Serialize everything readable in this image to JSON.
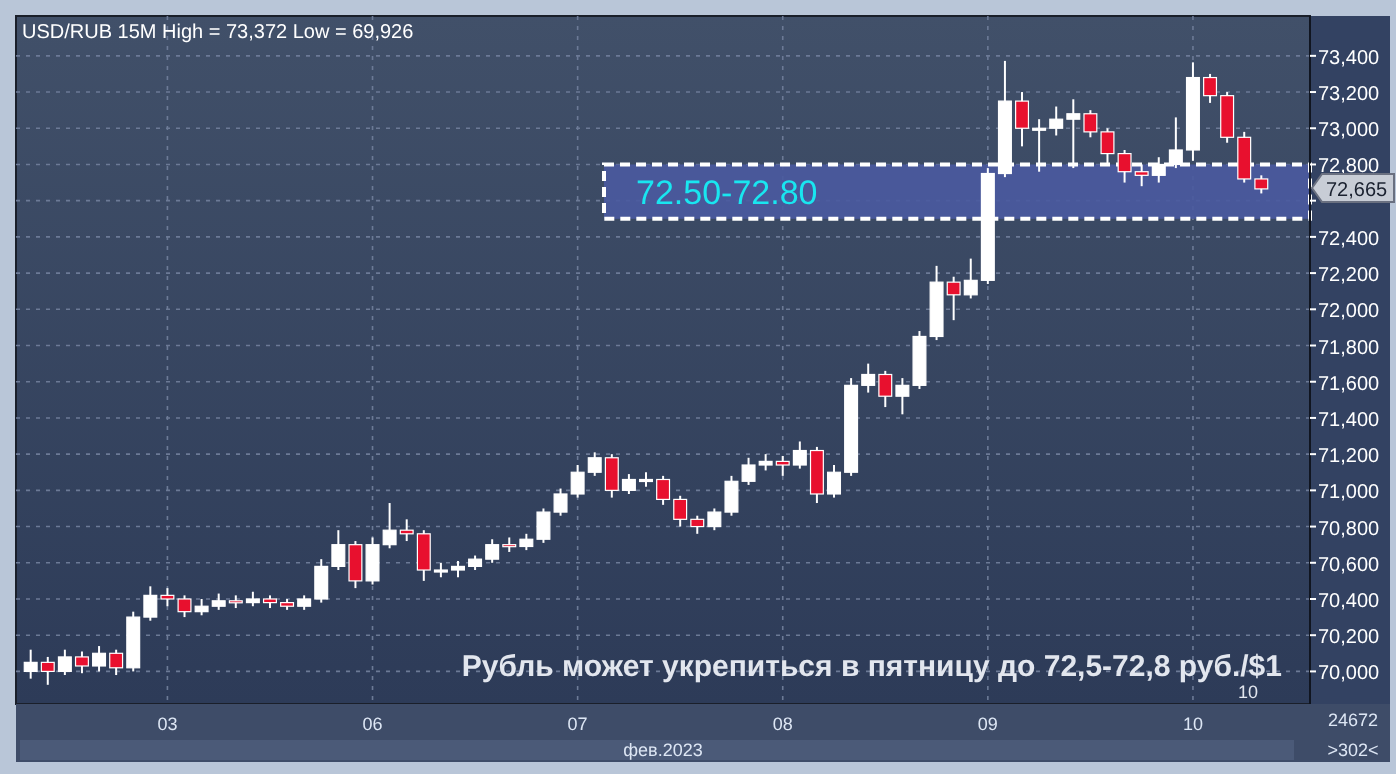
{
  "chart_data": {
    "type": "candlestick",
    "title": "USD/RUB 15M High = 73,372 Low = 69,926",
    "xlabel": "фев.2023",
    "categories": [
      null,
      null,
      null,
      null,
      null,
      null,
      null,
      null,
      "03",
      null,
      null,
      null,
      null,
      null,
      null,
      null,
      null,
      null,
      null,
      null,
      "06",
      null,
      null,
      null,
      null,
      null,
      null,
      null,
      null,
      null,
      null,
      null,
      "07",
      null,
      null,
      null,
      null,
      null,
      null,
      null,
      null,
      null,
      null,
      null,
      "08",
      null,
      null,
      null,
      null,
      null,
      null,
      null,
      null,
      null,
      null,
      null,
      "09",
      null,
      null,
      null,
      null,
      null,
      null,
      null,
      null,
      null,
      null,
      null,
      "10",
      null,
      null,
      null,
      null
    ],
    "ohlc": [
      [
        70000,
        70120,
        69960,
        70050
      ],
      [
        70050,
        70080,
        69926,
        70000
      ],
      [
        70000,
        70120,
        69980,
        70080
      ],
      [
        70080,
        70110,
        69990,
        70030
      ],
      [
        70030,
        70140,
        70000,
        70100
      ],
      [
        70100,
        70120,
        69980,
        70020
      ],
      [
        70020,
        70330,
        70000,
        70300
      ],
      [
        70300,
        70470,
        70280,
        70420
      ],
      [
        70420,
        70460,
        70360,
        70400
      ],
      [
        70400,
        70420,
        70300,
        70330
      ],
      [
        70330,
        70400,
        70310,
        70360
      ],
      [
        70360,
        70430,
        70340,
        70390
      ],
      [
        70390,
        70420,
        70350,
        70380
      ],
      [
        70380,
        70440,
        70360,
        70400
      ],
      [
        70400,
        70420,
        70350,
        70380
      ],
      [
        70380,
        70400,
        70340,
        70360
      ],
      [
        70360,
        70420,
        70340,
        70400
      ],
      [
        70400,
        70620,
        70380,
        70580
      ],
      [
        70580,
        70780,
        70560,
        70700
      ],
      [
        70700,
        70720,
        70460,
        70500
      ],
      [
        70500,
        70740,
        70480,
        70700
      ],
      [
        70700,
        70930,
        70680,
        70780
      ],
      [
        70780,
        70840,
        70720,
        70760
      ],
      [
        70760,
        70780,
        70500,
        70560
      ],
      [
        70560,
        70600,
        70520,
        70560
      ],
      [
        70560,
        70610,
        70520,
        70580
      ],
      [
        70580,
        70640,
        70560,
        70620
      ],
      [
        70620,
        70730,
        70600,
        70700
      ],
      [
        70700,
        70740,
        70660,
        70690
      ],
      [
        70690,
        70760,
        70670,
        70730
      ],
      [
        70730,
        70900,
        70710,
        70880
      ],
      [
        70880,
        71010,
        70860,
        70980
      ],
      [
        70980,
        71140,
        70960,
        71100
      ],
      [
        71100,
        71210,
        71080,
        71180
      ],
      [
        71180,
        71200,
        70960,
        71000
      ],
      [
        71000,
        71090,
        70980,
        71060
      ],
      [
        71060,
        71100,
        71020,
        71060
      ],
      [
        71060,
        71080,
        70920,
        70950
      ],
      [
        70950,
        70970,
        70800,
        70840
      ],
      [
        70840,
        70860,
        70760,
        70800
      ],
      [
        70800,
        70900,
        70780,
        70880
      ],
      [
        70880,
        71080,
        70860,
        71050
      ],
      [
        71050,
        71180,
        71030,
        71140
      ],
      [
        71140,
        71200,
        71110,
        71160
      ],
      [
        71160,
        71190,
        71080,
        71140
      ],
      [
        71140,
        71270,
        71120,
        71220
      ],
      [
        71220,
        71240,
        70930,
        70980
      ],
      [
        70980,
        71140,
        70960,
        71100
      ],
      [
        71100,
        71620,
        71080,
        71580
      ],
      [
        71580,
        71700,
        71540,
        71640
      ],
      [
        71640,
        71660,
        71460,
        71520
      ],
      [
        71520,
        71620,
        71420,
        71580
      ],
      [
        71580,
        71880,
        71560,
        71850
      ],
      [
        71850,
        72240,
        71830,
        72150
      ],
      [
        72150,
        72180,
        71940,
        72080
      ],
      [
        72080,
        72280,
        72060,
        72160
      ],
      [
        72160,
        72780,
        72140,
        72750
      ],
      [
        72750,
        73372,
        72730,
        73150
      ],
      [
        73150,
        73200,
        72900,
        73000
      ],
      [
        73000,
        73050,
        72760,
        73000
      ],
      [
        73000,
        73120,
        72960,
        73050
      ],
      [
        73050,
        73160,
        72780,
        73080
      ],
      [
        73080,
        73100,
        72950,
        72980
      ],
      [
        72980,
        73000,
        72800,
        72860
      ],
      [
        72860,
        72880,
        72700,
        72760
      ],
      [
        72760,
        72800,
        72680,
        72740
      ],
      [
        72740,
        72840,
        72700,
        72800
      ],
      [
        72800,
        73060,
        72780,
        72880
      ],
      [
        72880,
        73364,
        72820,
        73280
      ],
      [
        73280,
        73300,
        73140,
        73180
      ],
      [
        73180,
        73200,
        72920,
        72950
      ],
      [
        72950,
        72980,
        72700,
        72720
      ],
      [
        72720,
        72740,
        72640,
        72665
      ]
    ],
    "ylim": [
      69820,
      73620
    ],
    "yticks": [
      {
        "value": 70000,
        "label": "70,000"
      },
      {
        "value": 70200,
        "label": "70,200"
      },
      {
        "value": 70400,
        "label": "70,400"
      },
      {
        "value": 70600,
        "label": "70,600"
      },
      {
        "value": 70800,
        "label": "70,800"
      },
      {
        "value": 71000,
        "label": "71,000"
      },
      {
        "value": 71200,
        "label": "71,200"
      },
      {
        "value": 71400,
        "label": "71,400"
      },
      {
        "value": 71600,
        "label": "71,600"
      },
      {
        "value": 71800,
        "label": "71,800"
      },
      {
        "value": 72000,
        "label": "72,000"
      },
      {
        "value": 72200,
        "label": "72,200"
      },
      {
        "value": 72400,
        "label": "72,400"
      },
      {
        "value": 72600,
        "label": null
      },
      {
        "value": 72800,
        "label": "72,800"
      },
      {
        "value": 73000,
        "label": "73,000"
      },
      {
        "value": 73200,
        "label": "73,200"
      },
      {
        "value": 73400,
        "label": "73,400"
      }
    ],
    "grid": true,
    "bands": [
      {
        "axis": "y",
        "from": 72500,
        "to": 72800,
        "label": "72.50-72.80",
        "color": "#4a5aa0"
      }
    ],
    "annotations": [
      "72,665",
      "Рубль может укрепиться в пятницу до 72,5-72,8 руб./$1",
      "10",
      "24672",
      ">302<"
    ]
  }
}
